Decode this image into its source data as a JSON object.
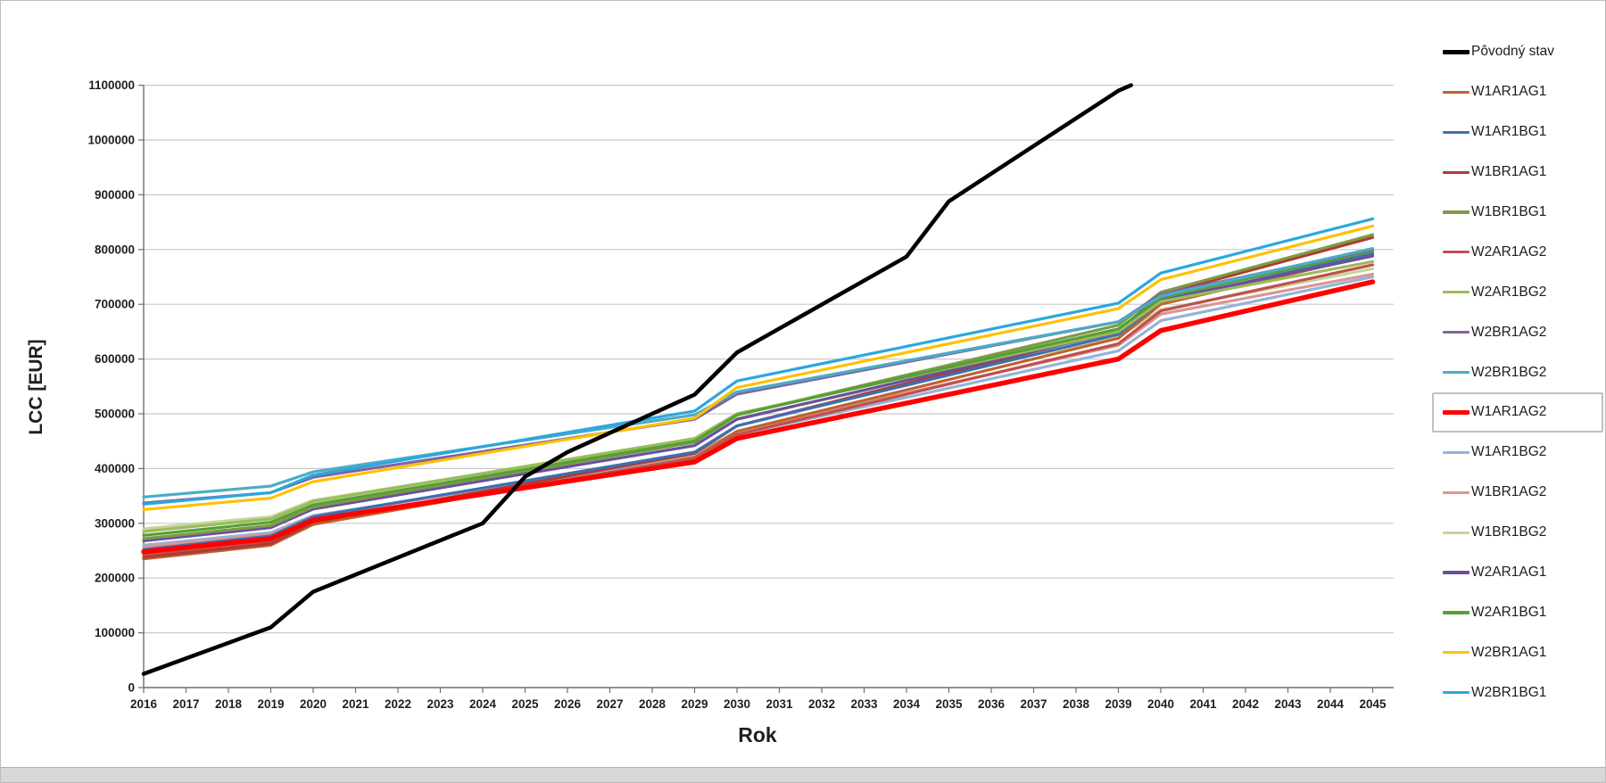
{
  "window": {
    "background": "#FFFFFF",
    "frame_color": "#BDBDBD",
    "bottom_strip_color": "#D8D8D8"
  },
  "chart_data": {
    "type": "line",
    "title": "",
    "xlabel": "Rok",
    "ylabel": "LCC [EUR]",
    "ylim": [
      0,
      1100000
    ],
    "y_tick_step": 100000,
    "grid": "horizontal-only",
    "grid_color": "#C9C9C9",
    "axis_color": "#6E6E6E",
    "tick_label_color": "#1F1F1F",
    "legend_position": "right",
    "selected_legend_item": "W1AR1AG2",
    "x_categories": [
      "2016",
      "2017",
      "2018",
      "2019",
      "2020",
      "2021",
      "2022",
      "2023",
      "2024",
      "2025",
      "2026",
      "2027",
      "2028",
      "2029",
      "2030",
      "2031",
      "2032",
      "2033",
      "2034",
      "2035",
      "2036",
      "2037",
      "2038",
      "2039",
      "2040",
      "2041",
      "2042",
      "2043",
      "2044",
      "2045"
    ],
    "y_tick_labels": [
      "0",
      "100000",
      "200000",
      "300000",
      "400000",
      "500000",
      "600000",
      "700000",
      "800000",
      "900000",
      "1000000",
      "1100000"
    ],
    "draw_order": [
      "W1AR1BG2",
      "W1BR1AG2",
      "W1BR1BG2",
      "W1AR1AG1",
      "W2AR1AG2",
      "W1BR1AG1",
      "W1AR1BG1",
      "W2AR1AG1",
      "W1BR1BG1",
      "W2AR1BG2",
      "W2AR1BG1",
      "W2BR1AG2",
      "W2BR1BG2",
      "W2BR1AG1",
      "W2BR1BG1",
      "W1AR1AG2",
      "Pôvodný stav"
    ],
    "series": [
      {
        "name": "Pôvodný stav",
        "color": "#000000",
        "line_width": 4.5,
        "x": [
          2016,
          2019,
          2020,
          2024,
          2025,
          2026,
          2029,
          2030,
          2034,
          2035,
          2039,
          2039.3
        ],
        "values": [
          25000,
          110000,
          175000,
          300000,
          385000,
          430000,
          535000,
          612000,
          787000,
          888000,
          1090000,
          1100000
        ]
      },
      {
        "name": "W1AR1AG1",
        "color": "#C0622C",
        "line_width": 3.2,
        "x": [
          2016,
          2019,
          2020,
          2029,
          2030,
          2039,
          2040,
          2045
        ],
        "values": [
          235000,
          260000,
          298000,
          420000,
          468000,
          638000,
          700000,
          790000
        ]
      },
      {
        "name": "W1AR1BG1",
        "color": "#3E6FB0",
        "line_width": 3.2,
        "x": [
          2016,
          2019,
          2020,
          2029,
          2030,
          2039,
          2040,
          2045
        ],
        "values": [
          252000,
          277000,
          312000,
          430000,
          478000,
          645000,
          705000,
          793000
        ]
      },
      {
        "name": "W1BR1AG1",
        "color": "#AE3B32",
        "line_width": 3.2,
        "x": [
          2016,
          2019,
          2020,
          2029,
          2030,
          2039,
          2040,
          2045
        ],
        "values": [
          238000,
          263000,
          302000,
          428000,
          478000,
          652000,
          718000,
          822000
        ]
      },
      {
        "name": "W1BR1BG1",
        "color": "#7E9B44",
        "line_width": 3.2,
        "x": [
          2016,
          2019,
          2020,
          2029,
          2030,
          2039,
          2040,
          2045
        ],
        "values": [
          272000,
          296000,
          330000,
          448000,
          498000,
          662000,
          722000,
          827000
        ]
      },
      {
        "name": "W2AR1AG2",
        "color": "#C0504D",
        "line_width": 3.2,
        "x": [
          2016,
          2019,
          2020,
          2029,
          2030,
          2039,
          2040,
          2045
        ],
        "values": [
          243000,
          268000,
          305000,
          418000,
          462000,
          628000,
          688000,
          772000
        ]
      },
      {
        "name": "W2AR1BG2",
        "color": "#9BBB59",
        "line_width": 3.2,
        "x": [
          2016,
          2019,
          2020,
          2029,
          2030,
          2039,
          2040,
          2045
        ],
        "values": [
          285000,
          308000,
          340000,
          455000,
          500000,
          650000,
          705000,
          778000
        ]
      },
      {
        "name": "W2BR1AG2",
        "color": "#8064A2",
        "line_width": 3.2,
        "x": [
          2016,
          2019,
          2020,
          2029,
          2030,
          2039,
          2040,
          2045
        ],
        "values": [
          337000,
          356000,
          384000,
          490000,
          536000,
          668000,
          718000,
          800000
        ]
      },
      {
        "name": "W2BR1BG2",
        "color": "#4BACC6",
        "line_width": 3.2,
        "x": [
          2016,
          2019,
          2020,
          2029,
          2030,
          2039,
          2040,
          2045
        ],
        "values": [
          348000,
          368000,
          394000,
          498000,
          540000,
          668000,
          715000,
          802000
        ]
      },
      {
        "name": "W1AR1AG2",
        "color": "#FF0000",
        "line_width": 5.5,
        "x": [
          2016,
          2019,
          2020,
          2029,
          2030,
          2039,
          2040,
          2045
        ],
        "values": [
          248000,
          272000,
          306000,
          412000,
          455000,
          600000,
          652000,
          741000
        ]
      },
      {
        "name": "W1AR1BG2",
        "color": "#95B3D7",
        "line_width": 3.2,
        "x": [
          2016,
          2019,
          2020,
          2029,
          2030,
          2039,
          2040,
          2045
        ],
        "values": [
          260000,
          283000,
          314000,
          422000,
          462000,
          615000,
          670000,
          750000
        ]
      },
      {
        "name": "W1BR1AG2",
        "color": "#D99694",
        "line_width": 3.2,
        "x": [
          2016,
          2019,
          2020,
          2029,
          2030,
          2039,
          2040,
          2045
        ],
        "values": [
          257000,
          280000,
          312000,
          425000,
          468000,
          625000,
          682000,
          755000
        ]
      },
      {
        "name": "W1BR1BG2",
        "color": "#C3D69B",
        "line_width": 3.2,
        "x": [
          2016,
          2019,
          2020,
          2029,
          2030,
          2039,
          2040,
          2045
        ],
        "values": [
          290000,
          312000,
          342000,
          452000,
          492000,
          640000,
          690000,
          765000
        ]
      },
      {
        "name": "W2AR1AG1",
        "color": "#6A4FA0",
        "line_width": 3.2,
        "x": [
          2016,
          2019,
          2020,
          2029,
          2030,
          2039,
          2040,
          2045
        ],
        "values": [
          268000,
          292000,
          326000,
          442000,
          490000,
          650000,
          708000,
          788000
        ]
      },
      {
        "name": "W2AR1BG1",
        "color": "#55A037",
        "line_width": 3.2,
        "x": [
          2016,
          2019,
          2020,
          2029,
          2030,
          2039,
          2040,
          2045
        ],
        "values": [
          278000,
          302000,
          334000,
          450000,
          498000,
          655000,
          712000,
          797000
        ]
      },
      {
        "name": "W2BR1AG1",
        "color": "#FFC000",
        "line_width": 3.2,
        "x": [
          2016,
          2019,
          2020,
          2029,
          2030,
          2039,
          2040,
          2045
        ],
        "values": [
          325000,
          346000,
          376000,
          492000,
          548000,
          692000,
          745000,
          843000
        ]
      },
      {
        "name": "W2BR1BG1",
        "color": "#2BA7DE",
        "line_width": 3.2,
        "x": [
          2016,
          2019,
          2020,
          2029,
          2030,
          2039,
          2040,
          2045
        ],
        "values": [
          335000,
          356000,
          388000,
          505000,
          560000,
          702000,
          757000,
          856000
        ]
      }
    ]
  }
}
